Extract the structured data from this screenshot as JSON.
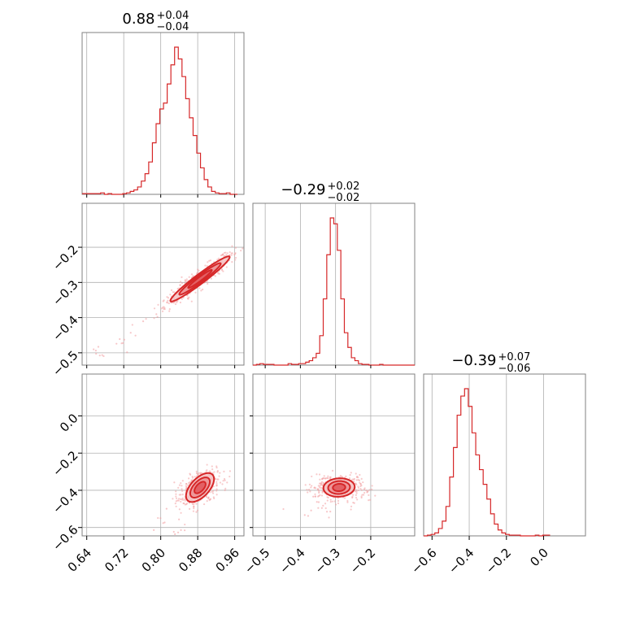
{
  "chart_data": {
    "type": "corner",
    "color": "#d62728",
    "parameters": [
      {
        "title_main": "0.88",
        "title_plus": "+0.04",
        "title_minus": "−0.04",
        "range": [
          0.63,
          0.98
        ],
        "ticks": [
          0.64,
          0.72,
          0.8,
          0.88,
          0.96
        ],
        "tick_labels": [
          "0.64",
          "0.72",
          "0.80",
          "0.88",
          "0.96"
        ]
      },
      {
        "title_main": "−0.29",
        "title_plus": "+0.02",
        "title_minus": "−0.02",
        "range": [
          -0.535,
          -0.075
        ],
        "ticks": [
          -0.5,
          -0.4,
          -0.3,
          -0.2
        ],
        "tick_labels": [
          "−0.5",
          "−0.4",
          "−0.3",
          "−0.2"
        ]
      },
      {
        "title_main": "−0.39",
        "title_plus": "+0.07",
        "title_minus": "−0.06",
        "range": [
          -0.645,
          0.225
        ],
        "ticks": [
          -0.6,
          -0.4,
          -0.2,
          0.0
        ],
        "tick_labels": [
          "−0.6",
          "−0.4",
          "−0.2",
          "0.0"
        ]
      }
    ],
    "histograms": [
      {
        "param": 0,
        "edges_start": 0.63,
        "bin_width": 0.008,
        "counts": [
          0.5,
          0.5,
          0.5,
          0.5,
          0.5,
          1,
          0,
          0.5,
          0,
          0,
          0,
          0.5,
          1,
          2,
          3,
          5,
          9,
          14,
          22,
          35,
          48,
          58,
          62,
          75,
          88,
          100,
          92,
          80,
          65,
          52,
          40,
          28,
          18,
          10,
          5,
          2,
          1,
          0.5,
          0.5,
          1,
          0,
          0
        ]
      },
      {
        "param": 1,
        "edges_start": -0.535,
        "bin_width": 0.01,
        "counts": [
          0,
          0.5,
          1,
          0.5,
          0.5,
          0.5,
          0,
          0,
          0,
          0,
          1,
          0.5,
          0.5,
          1,
          1,
          2,
          3,
          5,
          8,
          20,
          45,
          75,
          100,
          96,
          78,
          45,
          22,
          12,
          5,
          3,
          1,
          0.5,
          0.5,
          0,
          0,
          0,
          0.5,
          0,
          0,
          0,
          0,
          0,
          0,
          0,
          0,
          0
        ]
      },
      {
        "param": 2,
        "edges_start": -0.645,
        "bin_width": 0.02,
        "counts": [
          0,
          0.5,
          1,
          2,
          5,
          10,
          20,
          40,
          60,
          82,
          95,
          100,
          88,
          70,
          55,
          45,
          35,
          25,
          15,
          8,
          4,
          2,
          1,
          0.5,
          0.5,
          0.5,
          0,
          0,
          0,
          0,
          0.5,
          0,
          0.5,
          0.5
        ]
      }
    ],
    "contours_2d": [
      {
        "x_param": 0,
        "y_param": 1,
        "center": [
          0.885,
          -0.29
        ],
        "slope": 1.0,
        "sigma_major": 0.045,
        "sigma_minor": 0.006
      },
      {
        "x_param": 0,
        "y_param": 2,
        "center": [
          0.885,
          -0.385
        ],
        "slope": 4.0,
        "sigma_major": 0.04,
        "sigma_minor": 0.012
      },
      {
        "x_param": 1,
        "y_param": 2,
        "center": [
          -0.29,
          -0.385
        ],
        "slope": 3.5,
        "sigma_major": 0.025,
        "sigma_minor": 0.022
      }
    ],
    "grid": true
  }
}
